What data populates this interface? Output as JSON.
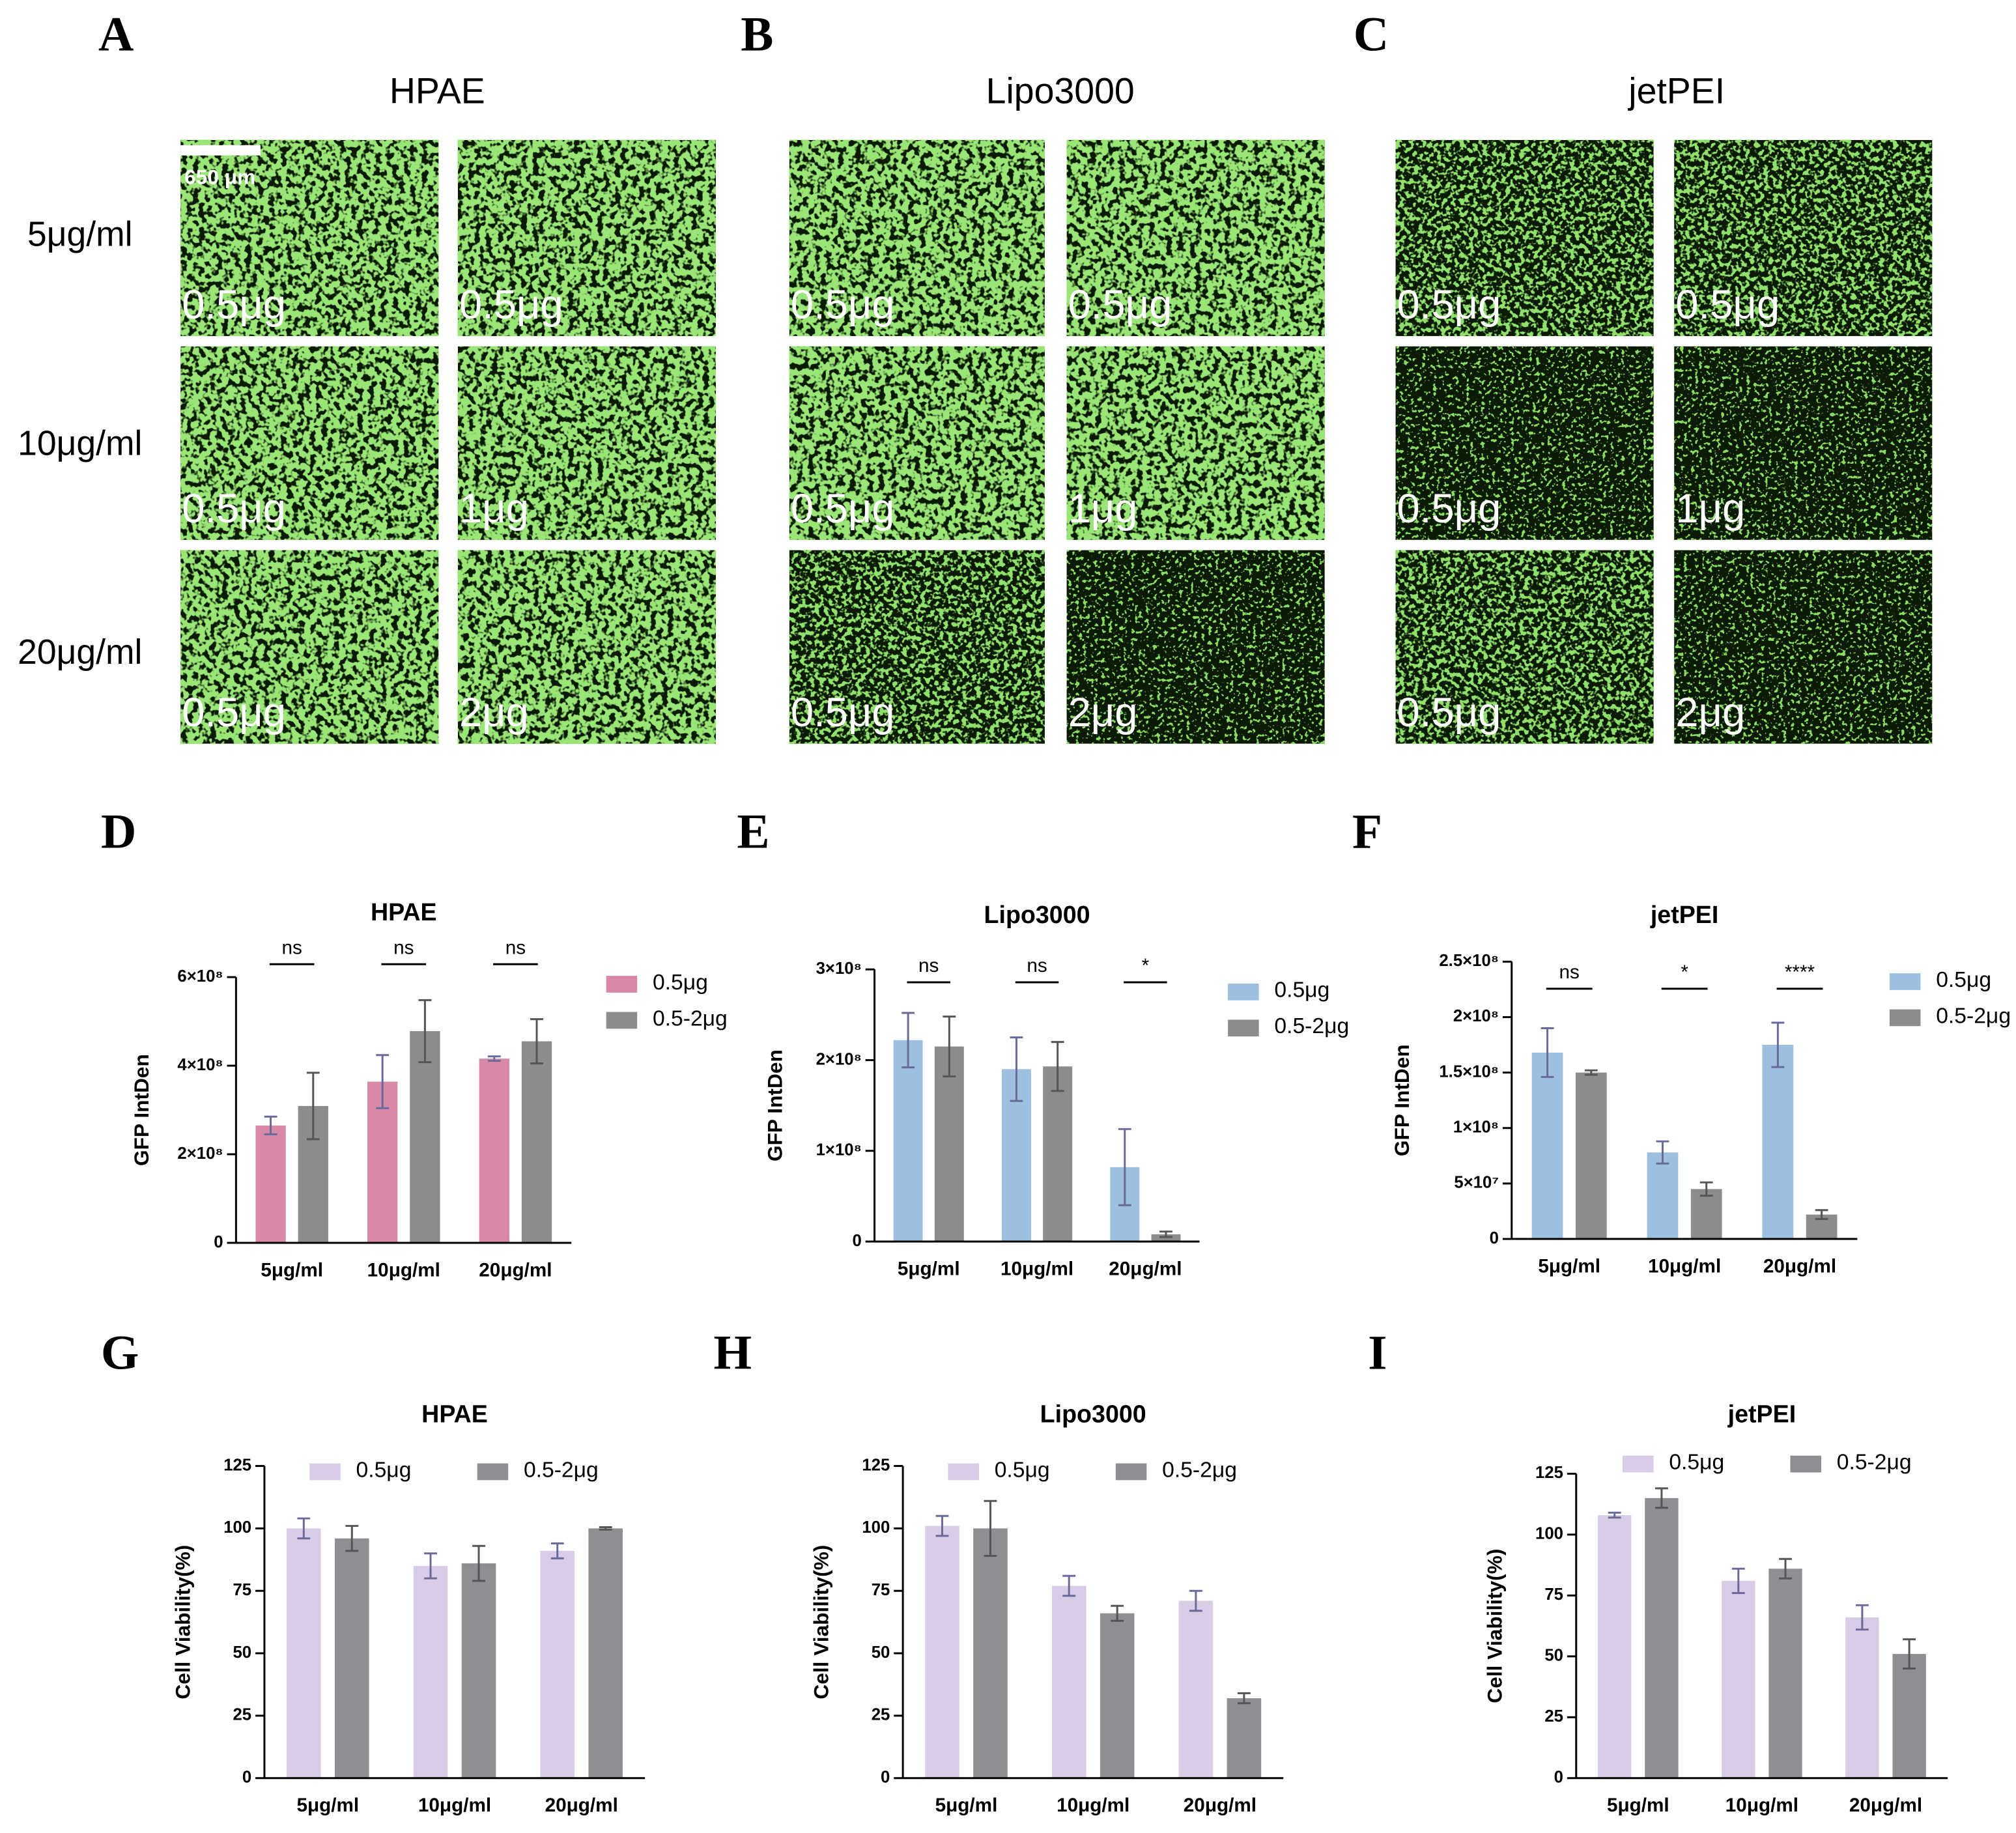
{
  "images": {
    "row_labels": [
      "5μg/ml",
      "10μg/ml",
      "20μg/ml"
    ],
    "scale_bar": "650 μm",
    "panels": [
      {
        "label": "A",
        "title": "HPAE",
        "tiles": [
          [
            "0.5μg",
            "0.5μg"
          ],
          [
            "0.5μg",
            "1μg"
          ],
          [
            "0.5μg",
            "2μg"
          ]
        ]
      },
      {
        "label": "B",
        "title": "Lipo3000",
        "tiles": [
          [
            "0.5μg",
            "0.5μg"
          ],
          [
            "0.5μg",
            "1μg"
          ],
          [
            "0.5μg",
            "2μg"
          ]
        ]
      },
      {
        "label": "C",
        "title": "jetPEI",
        "tiles": [
          [
            "0.5μg",
            "0.5μg"
          ],
          [
            "0.5μg",
            "1μg"
          ],
          [
            "0.5μg",
            "2μg"
          ]
        ]
      }
    ]
  },
  "chart_data": [
    {
      "type": "bar",
      "label": "D",
      "title": "HPAE",
      "ylabel": "GFP IntDen",
      "legend": "right",
      "categories": [
        "5μg/ml",
        "10μg/ml",
        "20μg/ml"
      ],
      "annotations": [
        "ns",
        "ns",
        "ns"
      ],
      "series": [
        {
          "name": "0.5μg",
          "color": "#d889a8",
          "values": [
            265000000,
            364000000,
            416000000
          ],
          "errors": [
            20000000,
            60000000,
            5000000
          ]
        },
        {
          "name": "0.5-2μg",
          "color": "#8c8c8c",
          "values": [
            309000000,
            478000000,
            455000000
          ],
          "errors": [
            75000000,
            70000000,
            50000000
          ]
        }
      ],
      "ylim": [
        0,
        600000000
      ],
      "yticks": [
        0,
        {
          "value": 200000000,
          "label": "2×10⁸"
        },
        {
          "value": 400000000,
          "label": "4×10⁸"
        },
        {
          "value": 600000000,
          "label": "6×10⁸"
        }
      ]
    },
    {
      "type": "bar",
      "label": "E",
      "title": "Lipo3000",
      "ylabel": "GFP IntDen",
      "legend": "right",
      "categories": [
        "5μg/ml",
        "10μg/ml",
        "20μg/ml"
      ],
      "annotations": [
        "ns",
        "ns",
        "*"
      ],
      "series": [
        {
          "name": "0.5μg",
          "color": "#9dbfe0",
          "values": [
            222000000,
            190000000,
            82000000
          ],
          "errors": [
            30000000,
            35000000,
            42000000
          ]
        },
        {
          "name": "0.5-2μg",
          "color": "#8c8c8c",
          "values": [
            215000000,
            193000000,
            8000000
          ],
          "errors": [
            33000000,
            27000000,
            3000000
          ]
        }
      ],
      "ylim": [
        0,
        300000000
      ],
      "yticks": [
        0,
        {
          "value": 100000000,
          "label": "1×10⁸"
        },
        {
          "value": 200000000,
          "label": "2×10⁸"
        },
        {
          "value": 300000000,
          "label": "3×10⁸"
        }
      ]
    },
    {
      "type": "bar",
      "label": "F",
      "title": "jetPEI",
      "ylabel": "GFP IntDen",
      "legend": "right",
      "categories": [
        "5μg/ml",
        "10μg/ml",
        "20μg/ml"
      ],
      "annotations": [
        "ns",
        "*",
        "****"
      ],
      "series": [
        {
          "name": "0.5μg",
          "color": "#9dbfe0",
          "values": [
            168000000,
            78000000,
            175000000
          ],
          "errors": [
            22000000,
            10000000,
            20000000
          ]
        },
        {
          "name": "0.5-2μg",
          "color": "#8c8c8c",
          "values": [
            150000000,
            45000000,
            22000000
          ],
          "errors": [
            2000000,
            6000000,
            4000000
          ]
        }
      ],
      "ylim": [
        0,
        250000000
      ],
      "yticks": [
        0,
        {
          "value": 50000000,
          "label": "5×10⁷"
        },
        {
          "value": 100000000,
          "label": "1×10⁸"
        },
        {
          "value": 150000000,
          "label": "1.5×10⁸"
        },
        {
          "value": 200000000,
          "label": "2×10⁸"
        },
        {
          "value": 250000000,
          "label": "2.5×10⁸"
        }
      ]
    },
    {
      "type": "bar",
      "label": "G",
      "title": "HPAE",
      "ylabel": "Cell Viability(%)",
      "legend": "top",
      "categories": [
        "5μg/ml",
        "10μg/ml",
        "20μg/ml"
      ],
      "series": [
        {
          "name": "0.5μg",
          "color": "#d8cce6",
          "values": [
            100,
            85,
            91
          ],
          "errors": [
            4,
            5,
            3
          ]
        },
        {
          "name": "0.5-2μg",
          "color": "#8e8e93",
          "values": [
            96,
            86,
            100
          ],
          "errors": [
            5,
            7,
            0.5
          ]
        }
      ],
      "ylim": [
        0,
        125
      ],
      "yticks": [
        0,
        25,
        50,
        75,
        100,
        125
      ]
    },
    {
      "type": "bar",
      "label": "H",
      "title": "Lipo3000",
      "ylabel": "Cell Viability(%)",
      "legend": "top",
      "categories": [
        "5μg/ml",
        "10μg/ml",
        "20μg/ml"
      ],
      "series": [
        {
          "name": "0.5μg",
          "color": "#d8cce6",
          "values": [
            101,
            77,
            71
          ],
          "errors": [
            4,
            4,
            4
          ]
        },
        {
          "name": "0.5-2μg",
          "color": "#8e8e93",
          "values": [
            100,
            66,
            32
          ],
          "errors": [
            11,
            3,
            2
          ]
        }
      ],
      "ylim": [
        0,
        125
      ],
      "yticks": [
        0,
        25,
        50,
        75,
        100,
        125
      ]
    },
    {
      "type": "bar",
      "label": "I",
      "title": "jetPEI",
      "ylabel": "Cell Viability(%)",
      "legend": "top",
      "categories": [
        "5μg/ml",
        "10μg/ml",
        "20μg/ml"
      ],
      "series": [
        {
          "name": "0.5μg",
          "color": "#d8cce6",
          "values": [
            108,
            81,
            66
          ],
          "errors": [
            1,
            5,
            5
          ]
        },
        {
          "name": "0.5-2μg",
          "color": "#8e8e93",
          "values": [
            115,
            86,
            51
          ],
          "errors": [
            4,
            4,
            6
          ]
        }
      ],
      "ylim": [
        0,
        125
      ],
      "yticks": [
        0,
        25,
        50,
        75,
        100,
        125
      ]
    }
  ]
}
